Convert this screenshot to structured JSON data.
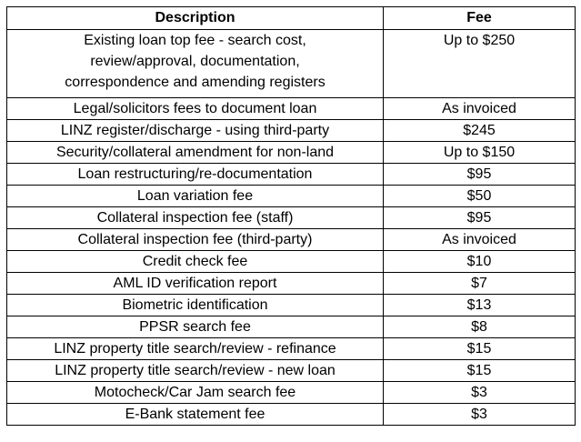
{
  "table": {
    "headers": {
      "description": "Description",
      "fee": "Fee"
    },
    "first_row": {
      "description_lines": [
        "Existing  loan top fee - search cost,",
        "review/approval, documentation,",
        "correspondence  and amending registers"
      ],
      "fee": "Up to $250"
    },
    "rows": [
      {
        "description": "Legal/solicitors  fees to document  loan",
        "fee": "As invoiced"
      },
      {
        "description": "LINZ register/discharge  - using third-party",
        "fee": "$245"
      },
      {
        "description": "Security/collateral  amendment for non-land",
        "fee": "Up to $150"
      },
      {
        "description": "Loan restructuring/re-documentation",
        "fee": "$95"
      },
      {
        "description": "Loan variation fee",
        "fee": "$50"
      },
      {
        "description": "Collateral  inspection fee (staff)",
        "fee": "$95"
      },
      {
        "description": "Collateral  inspection fee (third-party)",
        "fee": "As invoiced"
      },
      {
        "description": "Credit check fee",
        "fee": "$10"
      },
      {
        "description": "AML ID verification  report",
        "fee": "$7"
      },
      {
        "description": "Biometric  identification",
        "fee": "$13"
      },
      {
        "description": "PPSR search fee",
        "fee": "$8"
      },
      {
        "description": "LINZ property title search/review  - refinance",
        "fee": "$15"
      },
      {
        "description": "LINZ property title search/review  - new loan",
        "fee": "$15"
      },
      {
        "description": "Motocheck/Car Jam search fee",
        "fee": "$3"
      },
      {
        "description": "E-Bank statement  fee",
        "fee": "$3"
      }
    ]
  }
}
